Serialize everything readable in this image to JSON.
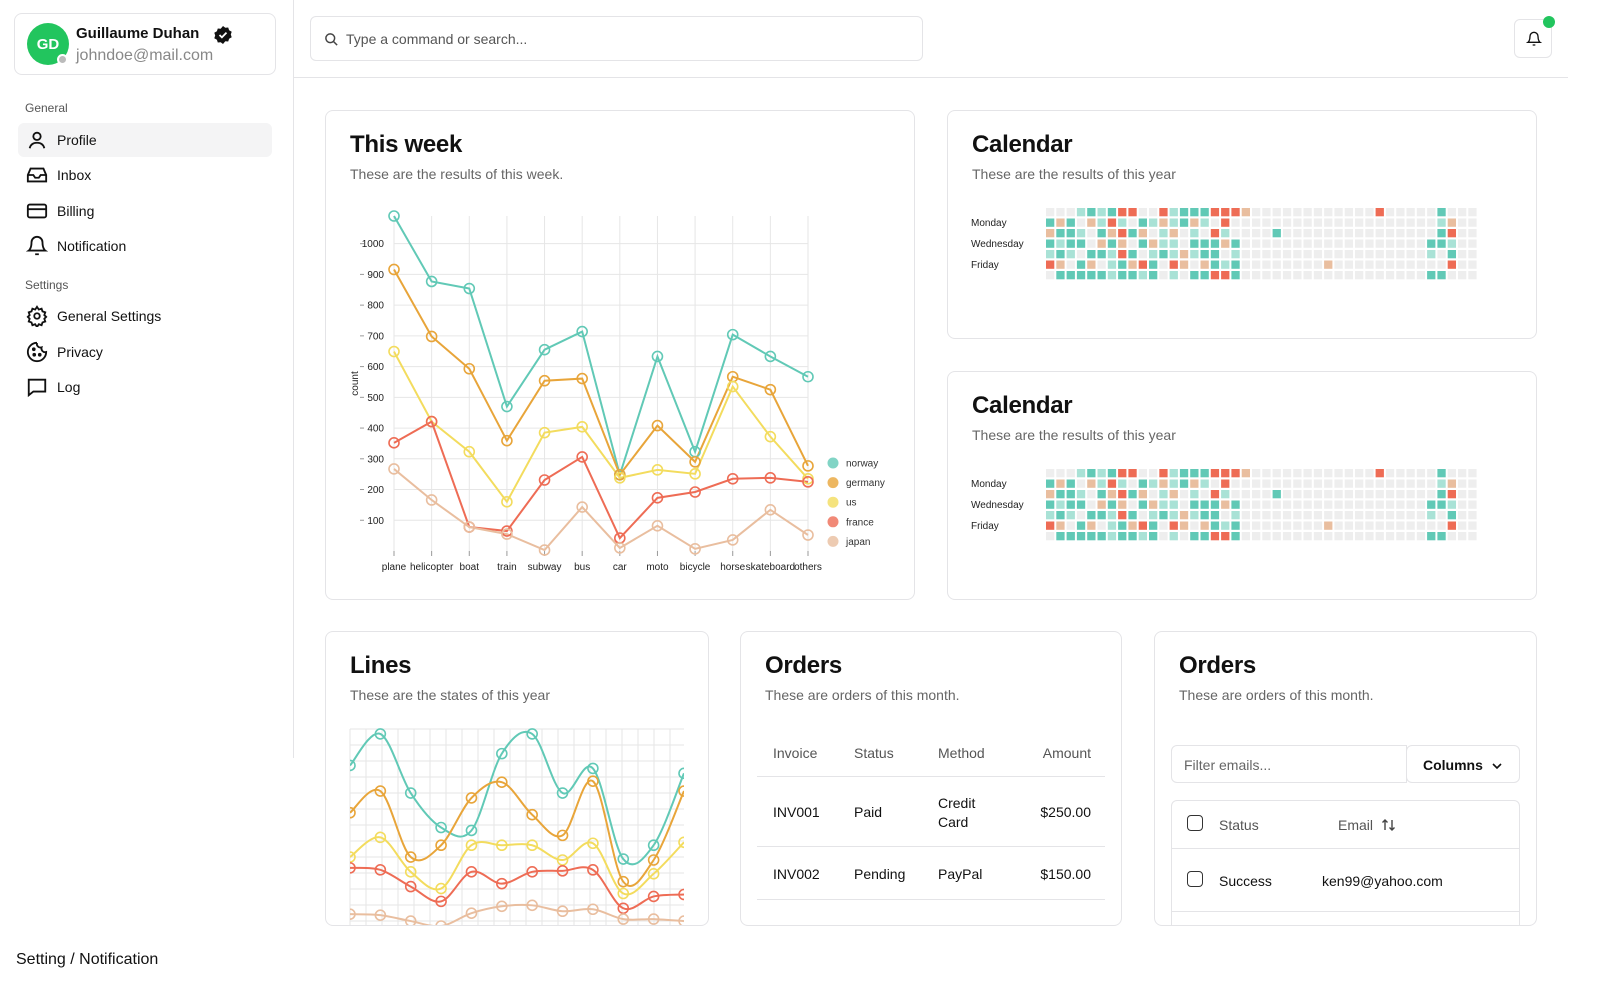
{
  "user": {
    "initials": "GD",
    "name": "Guillaume Duhan",
    "email": "johndoe@mail.com"
  },
  "nav": [
    {
      "group": "General",
      "items": [
        "Profile",
        "Inbox",
        "Billing",
        "Notification"
      ]
    },
    {
      "group": "Settings",
      "items": [
        "General Settings",
        "Privacy",
        "Log"
      ]
    }
  ],
  "search": {
    "placeholder": "Type a command or search..."
  },
  "breadcrumb": "Setting / Notification",
  "chart_data": [
    {
      "type": "line",
      "title": "This week",
      "subtitle": "These are the results of this week.",
      "y_label": "count",
      "categories": [
        "plane",
        "helicopter",
        "boat",
        "train",
        "subway",
        "bus",
        "car",
        "moto",
        "bicycle",
        "horse",
        "skateboard",
        "others"
      ],
      "series": [
        {
          "name": "norway",
          "color": "#61c9b6",
          "values": [
            1090,
            877,
            854,
            470,
            655,
            714,
            248,
            633,
            323,
            704,
            633,
            567
          ]
        },
        {
          "name": "germany",
          "color": "#e8a53a",
          "values": [
            916,
            698,
            593,
            359,
            554,
            561,
            248,
            408,
            290,
            567,
            525,
            277
          ]
        },
        {
          "name": "us",
          "color": "#f3dc5e",
          "values": [
            649,
            421,
            323,
            160,
            385,
            404,
            238,
            264,
            251,
            535,
            372,
            235
          ]
        },
        {
          "name": "france",
          "color": "#ee6c55",
          "values": [
            352,
            421,
            78,
            65,
            231,
            306,
            42,
            173,
            192,
            235,
            238,
            225
          ]
        },
        {
          "name": "japan",
          "color": "#e9be9f",
          "values": [
            267,
            166,
            78,
            55,
            3,
            143,
            10,
            82,
            7,
            36,
            134,
            52
          ]
        }
      ],
      "ylim": [
        0,
        1090
      ],
      "yticks": [
        100,
        200,
        300,
        400,
        500,
        600,
        700,
        800,
        900,
        1000
      ],
      "grid": true,
      "legend": "right"
    },
    {
      "type": "heatmap",
      "row_labels": [
        "Monday",
        "Wednesday",
        "Friday"
      ],
      "label_rows": [
        1,
        3,
        5
      ],
      "colors": [
        "#eeeeee",
        "#a9e2d6",
        "#61c9b6",
        "#e9be9f",
        "#ee6c55"
      ],
      "values": [
        [
          0,
          0,
          0,
          1,
          2,
          1,
          2,
          4,
          4,
          0,
          0,
          4,
          1,
          2,
          2,
          2,
          4,
          4,
          4,
          3,
          0,
          0,
          0,
          0,
          0,
          0,
          0,
          0,
          0,
          0,
          0,
          0,
          4,
          0,
          0,
          0,
          0,
          0,
          2,
          0,
          0,
          0
        ],
        [
          2,
          3,
          2,
          0,
          3,
          1,
          4,
          1,
          0,
          2,
          1,
          3,
          1,
          2,
          3,
          1,
          0,
          4,
          0,
          0,
          0,
          0,
          0,
          0,
          0,
          0,
          0,
          0,
          0,
          0,
          0,
          0,
          0,
          0,
          0,
          0,
          0,
          0,
          1,
          3,
          0,
          0
        ],
        [
          3,
          2,
          2,
          1,
          0,
          2,
          3,
          4,
          2,
          3,
          0,
          1,
          3,
          0,
          1,
          0,
          4,
          1,
          0,
          0,
          0,
          0,
          2,
          0,
          0,
          0,
          0,
          0,
          0,
          0,
          0,
          0,
          0,
          0,
          0,
          0,
          0,
          0,
          2,
          4,
          0,
          0
        ],
        [
          2,
          1,
          2,
          2,
          0,
          3,
          2,
          3,
          0,
          2,
          3,
          1,
          1,
          0,
          2,
          2,
          2,
          3,
          2,
          0,
          0,
          0,
          0,
          0,
          0,
          0,
          0,
          0,
          0,
          0,
          0,
          0,
          0,
          0,
          0,
          0,
          0,
          2,
          2,
          1,
          0,
          0
        ],
        [
          1,
          2,
          1,
          0,
          2,
          2,
          1,
          4,
          2,
          0,
          1,
          2,
          1,
          3,
          1,
          2,
          2,
          0,
          1,
          0,
          0,
          0,
          0,
          0,
          0,
          0,
          0,
          0,
          0,
          0,
          0,
          0,
          0,
          0,
          0,
          0,
          0,
          1,
          0,
          2,
          0,
          0
        ],
        [
          4,
          3,
          0,
          2,
          3,
          0,
          1,
          2,
          3,
          4,
          2,
          0,
          4,
          3,
          0,
          3,
          2,
          1,
          2,
          0,
          0,
          0,
          0,
          0,
          0,
          0,
          0,
          3,
          0,
          0,
          0,
          0,
          0,
          0,
          0,
          0,
          0,
          0,
          0,
          4,
          0,
          0
        ],
        [
          0,
          2,
          2,
          2,
          2,
          2,
          1,
          2,
          2,
          1,
          2,
          0,
          1,
          0,
          2,
          2,
          4,
          4,
          2,
          0,
          0,
          0,
          0,
          0,
          0,
          0,
          0,
          0,
          0,
          0,
          0,
          0,
          0,
          0,
          0,
          0,
          0,
          2,
          2,
          0,
          0,
          0
        ]
      ]
    },
    {
      "type": "line",
      "smooth": true,
      "title": "Lines",
      "subtitle": "These are the states of this year",
      "series": [
        {
          "color": "#61c9b6",
          "values": [
            163,
            195,
            135,
            100,
            97,
            175,
            195,
            135,
            160,
            68,
            82,
            155
          ]
        },
        {
          "color": "#e8a53a",
          "values": [
            115,
            137,
            70,
            82,
            130,
            146,
            113,
            92,
            147,
            45,
            67,
            137
          ]
        },
        {
          "color": "#f3dc5e",
          "values": [
            70,
            90,
            55,
            38,
            82,
            82,
            82,
            67,
            84,
            33,
            53,
            85
          ]
        },
        {
          "color": "#ee6c55",
          "values": [
            59,
            57,
            40,
            25,
            55,
            43,
            55,
            56,
            57,
            18,
            30,
            32
          ]
        },
        {
          "color": "#e9be9f",
          "values": [
            12,
            11,
            5,
            0,
            13,
            20,
            21,
            15,
            17,
            7,
            7,
            5
          ]
        }
      ],
      "ylim": [
        0,
        200
      ],
      "grid": true
    }
  ],
  "calendar_cards": [
    {
      "title": "Calendar",
      "subtitle": "These are the results of this year"
    },
    {
      "title": "Calendar",
      "subtitle": "These are the results of this year"
    }
  ],
  "orders": {
    "title": "Orders",
    "subtitle": "These are orders of this month.",
    "columns": [
      "Invoice",
      "Status",
      "Method",
      "Amount"
    ],
    "rows": [
      [
        "INV001",
        "Paid",
        "Credit Card",
        "$250.00"
      ],
      [
        "INV002",
        "Pending",
        "PayPal",
        "$150.00"
      ]
    ]
  },
  "orders2": {
    "title": "Orders",
    "subtitle": "These are orders of this month.",
    "filter_placeholder": "Filter emails...",
    "columns_button": "Columns",
    "columns": [
      "Status",
      "Email"
    ],
    "rows": [
      [
        "Success",
        "ken99@yahoo.com"
      ]
    ]
  }
}
